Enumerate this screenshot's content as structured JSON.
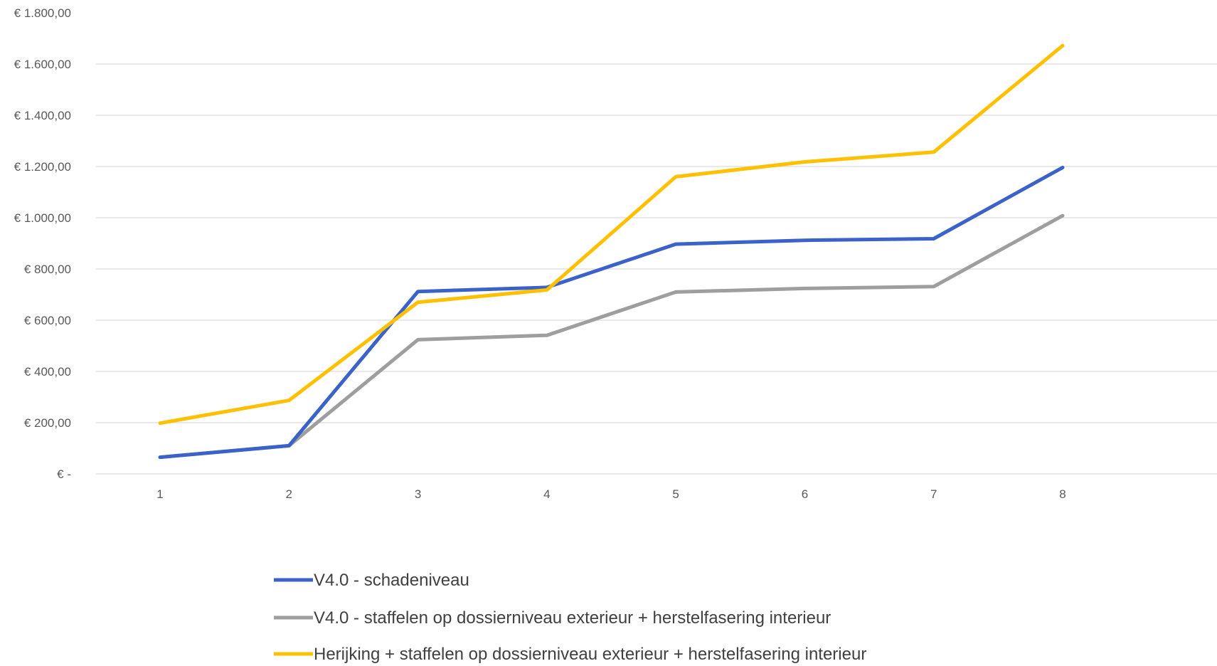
{
  "chart_data": {
    "type": "line",
    "x": [
      1,
      2,
      3,
      4,
      5,
      6,
      7,
      8
    ],
    "x_tick_labels": [
      "1",
      "2",
      "3",
      "4",
      "5",
      "6",
      "7",
      "8"
    ],
    "ylim": [
      0,
      1800
    ],
    "y_ticks": [
      0,
      200,
      400,
      600,
      800,
      1000,
      1200,
      1400,
      1600,
      1800
    ],
    "y_tick_labels": [
      "€ -",
      "€ 200,00",
      "€ 400,00",
      "€ 600,00",
      "€ 800,00",
      "€ 1.000,00",
      "€ 1.200,00",
      "€ 1.400,00",
      "€ 1.600,00",
      "€ 1.800,00"
    ],
    "grid": true,
    "legend_position": "bottom",
    "series": [
      {
        "name": "V4.0 - schadeniveau",
        "color": "#3A62C9",
        "values": [
          65,
          110,
          712,
          728,
          897,
          912,
          918,
          1196
        ]
      },
      {
        "name": "V4.0 - staffelen op dossierniveau exterieur + herstelfasering interieur",
        "color": "#9E9E9E",
        "values": [
          65,
          110,
          524,
          541,
          710,
          724,
          731,
          1008
        ]
      },
      {
        "name": "Herijking + staffelen op dossierniveau exterieur + herstelfasering interieur",
        "color": "#FFC000",
        "values": [
          198,
          287,
          670,
          718,
          1160,
          1218,
          1256,
          1672
        ]
      }
    ]
  }
}
